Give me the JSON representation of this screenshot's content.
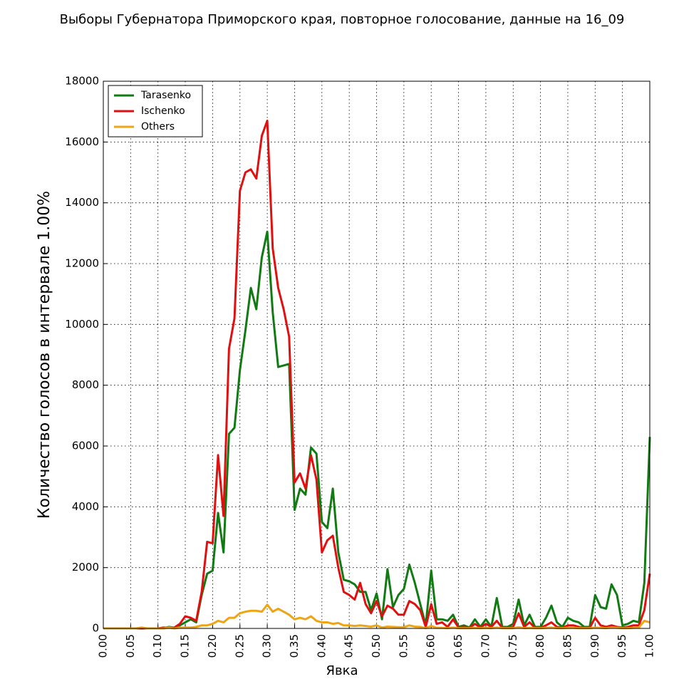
{
  "chart_data": {
    "type": "line",
    "title": "Выборы Губернатора Приморского края, повторное голосование, данные на 16_09",
    "x_label": "Явка",
    "y_label": "Количество голосов в интервале 1.00%",
    "x": [
      0,
      0.01,
      0.02,
      0.03,
      0.04,
      0.05,
      0.06,
      0.07,
      0.08,
      0.09,
      0.1,
      0.11,
      0.12,
      0.13,
      0.14,
      0.15,
      0.16,
      0.17,
      0.18,
      0.19,
      0.2,
      0.21,
      0.22,
      0.23,
      0.24,
      0.25,
      0.26,
      0.27,
      0.28,
      0.29,
      0.3,
      0.31,
      0.32,
      0.33,
      0.34,
      0.35,
      0.36,
      0.37,
      0.38,
      0.39,
      0.4,
      0.41,
      0.42,
      0.43,
      0.44,
      0.45,
      0.46,
      0.47,
      0.48,
      0.49,
      0.5,
      0.51,
      0.52,
      0.53,
      0.54,
      0.55,
      0.56,
      0.57,
      0.58,
      0.59,
      0.6,
      0.61,
      0.62,
      0.63,
      0.64,
      0.65,
      0.66,
      0.67,
      0.68,
      0.69,
      0.7,
      0.71,
      0.72,
      0.73,
      0.74,
      0.75,
      0.76,
      0.77,
      0.78,
      0.79,
      0.8,
      0.81,
      0.82,
      0.83,
      0.84,
      0.85,
      0.86,
      0.87,
      0.88,
      0.89,
      0.9,
      0.91,
      0.92,
      0.93,
      0.94,
      0.95,
      0.96,
      0.97,
      0.98,
      0.99,
      1
    ],
    "series": [
      {
        "name": "Tarasenko",
        "color": "#127a12",
        "values": [
          0,
          0,
          0,
          0,
          0,
          0,
          0,
          0,
          0,
          0,
          0,
          0,
          50,
          20,
          100,
          200,
          300,
          200,
          1100,
          1800,
          1900,
          3800,
          2500,
          6400,
          6600,
          8500,
          9800,
          11200,
          10500,
          12200,
          13050,
          10400,
          8600,
          8650,
          8700,
          3900,
          4600,
          4400,
          5950,
          5750,
          3500,
          3300,
          4600,
          2500,
          1600,
          1550,
          1450,
          1200,
          1200,
          600,
          1150,
          300,
          1950,
          700,
          1100,
          1300,
          2100,
          1500,
          800,
          100,
          1900,
          300,
          300,
          250,
          450,
          50,
          100,
          30,
          300,
          50,
          300,
          50,
          1000,
          50,
          50,
          150,
          950,
          100,
          450,
          50,
          50,
          350,
          750,
          200,
          50,
          350,
          250,
          200,
          50,
          50,
          1100,
          700,
          650,
          1450,
          1100,
          100,
          150,
          250,
          200,
          1500,
          6300
        ]
      },
      {
        "name": "Ischenko",
        "color": "#e01010",
        "values": [
          0,
          0,
          0,
          0,
          0,
          0,
          0,
          0,
          0,
          0,
          0,
          30,
          20,
          30,
          150,
          400,
          350,
          250,
          1200,
          2850,
          2800,
          5700,
          3700,
          9200,
          10200,
          14400,
          15000,
          15100,
          14800,
          16200,
          16700,
          12500,
          11200,
          10500,
          9600,
          4800,
          5100,
          4600,
          5700,
          4900,
          2500,
          2900,
          3050,
          2000,
          1200,
          1100,
          950,
          1500,
          800,
          500,
          900,
          400,
          750,
          650,
          450,
          450,
          900,
          800,
          600,
          50,
          800,
          150,
          200,
          50,
          300,
          30,
          50,
          20,
          150,
          30,
          150,
          50,
          250,
          20,
          30,
          50,
          500,
          50,
          200,
          20,
          20,
          100,
          200,
          50,
          20,
          100,
          100,
          50,
          20,
          20,
          350,
          100,
          50,
          100,
          50,
          30,
          50,
          100,
          100,
          600,
          1800
        ]
      },
      {
        "name": "Others",
        "color": "#eea515",
        "values": [
          0,
          0,
          0,
          0,
          0,
          0,
          0,
          30,
          0,
          0,
          0,
          0,
          30,
          0,
          30,
          30,
          30,
          50,
          100,
          100,
          150,
          250,
          200,
          350,
          350,
          500,
          550,
          580,
          580,
          550,
          780,
          550,
          650,
          550,
          450,
          300,
          350,
          300,
          400,
          250,
          200,
          200,
          150,
          180,
          100,
          100,
          80,
          100,
          80,
          60,
          100,
          30,
          60,
          50,
          40,
          40,
          100,
          60,
          50,
          10,
          80,
          20,
          20,
          10,
          30,
          10,
          10,
          10,
          20,
          10,
          20,
          10,
          30,
          10,
          10,
          10,
          40,
          10,
          20,
          10,
          10,
          20,
          30,
          10,
          10,
          20,
          20,
          10,
          10,
          10,
          30,
          20,
          10,
          30,
          20,
          10,
          10,
          20,
          30,
          250,
          200
        ]
      }
    ],
    "xlim": [
      0,
      1
    ],
    "xticks": [
      {
        "value": 0,
        "label": "0.00"
      },
      {
        "value": 0.05,
        "label": "0.05"
      },
      {
        "value": 0.1,
        "label": "0.10"
      },
      {
        "value": 0.15,
        "label": "0.15"
      },
      {
        "value": 0.2,
        "label": "0.20"
      },
      {
        "value": 0.25,
        "label": "0.25"
      },
      {
        "value": 0.3,
        "label": "0.30"
      },
      {
        "value": 0.35,
        "label": "0.35"
      },
      {
        "value": 0.4,
        "label": "0.40"
      },
      {
        "value": 0.45,
        "label": "0.45"
      },
      {
        "value": 0.5,
        "label": "0.50"
      },
      {
        "value": 0.55,
        "label": "0.55"
      },
      {
        "value": 0.6,
        "label": "0.60"
      },
      {
        "value": 0.65,
        "label": "0.65"
      },
      {
        "value": 0.7,
        "label": "0.70"
      },
      {
        "value": 0.75,
        "label": "0.75"
      },
      {
        "value": 0.8,
        "label": "0.80"
      },
      {
        "value": 0.85,
        "label": "0.85"
      },
      {
        "value": 0.9,
        "label": "0.90"
      },
      {
        "value": 0.95,
        "label": "0.95"
      },
      {
        "value": 1,
        "label": "1.00"
      }
    ],
    "ylim": [
      0,
      18000
    ],
    "yticks": [
      0,
      2000,
      4000,
      6000,
      8000,
      10000,
      12000,
      14000,
      16000,
      18000
    ],
    "grid": true,
    "legend": "upper left"
  }
}
